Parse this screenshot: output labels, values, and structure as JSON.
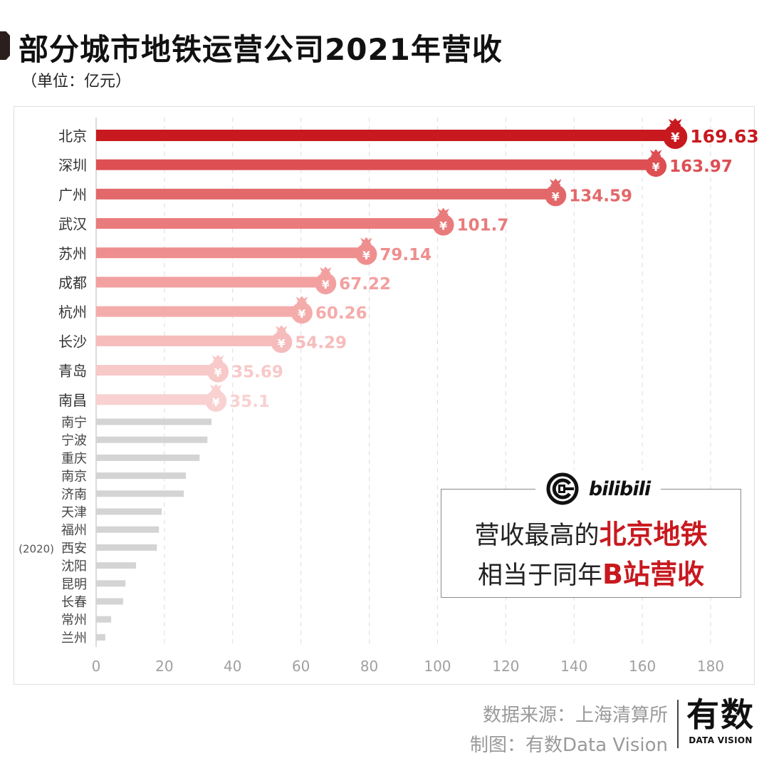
{
  "header": {
    "title": "部分城市地铁运营公司2021年营收",
    "unit": "（单位：亿元）"
  },
  "chart_data": {
    "type": "bar",
    "orientation": "horizontal",
    "title": "部分城市地铁运营公司2021年营收",
    "subtitle": "（单位：亿元）",
    "xlabel": "",
    "ylabel": "",
    "xlim": [
      0,
      180
    ],
    "xticks": [
      0,
      20,
      40,
      60,
      80,
      100,
      120,
      140,
      160,
      180
    ],
    "grid": "vertical dashed",
    "categories": [
      "北京",
      "深圳",
      "广州",
      "武汉",
      "苏州",
      "成都",
      "杭州",
      "长沙",
      "青岛",
      "南昌",
      "南宁",
      "宁波",
      "重庆",
      "南京",
      "济南",
      "天津",
      "福州",
      "西安",
      "沈阳",
      "昆明",
      "长春",
      "常州",
      "兰州"
    ],
    "category_notes": {
      "西安": "(2020)"
    },
    "values": [
      169.63,
      163.97,
      134.59,
      101.7,
      79.14,
      67.22,
      60.26,
      54.29,
      35.69,
      35.1,
      33.8,
      32.6,
      30.3,
      26.3,
      25.7,
      19.2,
      18.4,
      17.8,
      11.7,
      8.6,
      7.9,
      4.4,
      2.7
    ],
    "labels": [
      "169.63",
      "163.97",
      "134.59",
      "101.7",
      "79.14",
      "67.22",
      "60.26",
      "54.29",
      "35.69",
      "35.1",
      "",
      "",
      "",
      "",
      "",
      "",
      "",
      "",
      "",
      "",
      "",
      "",
      ""
    ],
    "highlight_count": 10,
    "colors": {
      "highlight": [
        "#c8191f",
        "#dd4f53",
        "#e2686a",
        "#e97b7c",
        "#ee8e8e",
        "#f2a0a0",
        "#f4acab",
        "#f6bcbc",
        "#f8c9c9",
        "#f9d1d1"
      ],
      "other": "#d4d4d4",
      "tick_text": "#a0a0a0",
      "label_text": "#333333"
    },
    "marker": "money-bag-yen"
  },
  "callout": {
    "logo_left": "beijing-subway-logo",
    "logo_right": "bilibili",
    "line1_prefix": "营收最高的",
    "line1_highlight": "北京地铁",
    "line2_prefix": "相当于同年",
    "line2_highlight": "B站营收"
  },
  "footer": {
    "source": "数据来源：上海清算所",
    "credit": "制图：有数Data Vision",
    "brand_cn": "有数",
    "brand_en": "DATA VISION"
  }
}
